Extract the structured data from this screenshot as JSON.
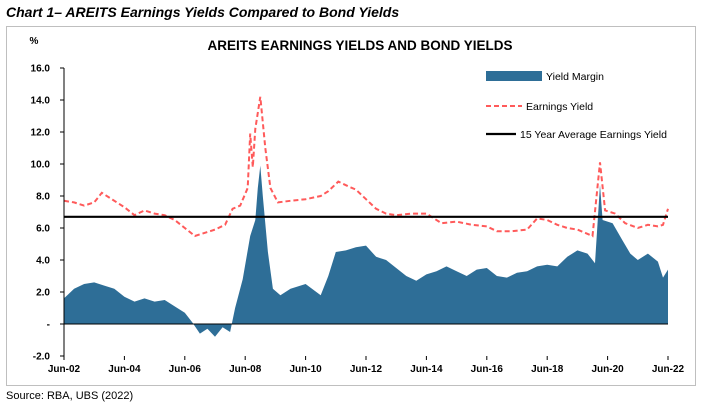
{
  "heading": "Chart 1– AREITS Earnings Yields Compared to Bond Yields",
  "source": "Source: RBA, UBS (2022)",
  "chart_data": {
    "type": "area",
    "title": "AREITS EARNINGS YIELDS AND BOND YIELDS",
    "unit_label": "%",
    "xlabel": "",
    "ylabel": "",
    "ylim": [
      -2.0,
      16.0
    ],
    "y_ticks": [
      "16.0",
      "14.0",
      "12.0",
      "10.0",
      "8.0",
      "6.0",
      "4.0",
      "2.0",
      "-",
      "-2.0"
    ],
    "x_ticks": [
      "Jun-02",
      "Jun-04",
      "Jun-06",
      "Jun-08",
      "Jun-10",
      "Jun-12",
      "Jun-14",
      "Jun-16",
      "Jun-18",
      "Jun-20",
      "Jun-22"
    ],
    "xlim": [
      "2002-06",
      "2022-06"
    ],
    "grid": false,
    "legend_position": "top-right",
    "series": [
      {
        "name": "Yield Margin",
        "style": "area",
        "color": "#2e6e97",
        "points": [
          [
            "2002-06",
            1.6
          ],
          [
            "2002-10",
            2.2
          ],
          [
            "2003-02",
            2.5
          ],
          [
            "2003-06",
            2.6
          ],
          [
            "2003-10",
            2.4
          ],
          [
            "2004-02",
            2.2
          ],
          [
            "2004-06",
            1.7
          ],
          [
            "2004-10",
            1.4
          ],
          [
            "2005-02",
            1.6
          ],
          [
            "2005-06",
            1.4
          ],
          [
            "2005-10",
            1.5
          ],
          [
            "2006-02",
            1.1
          ],
          [
            "2006-06",
            0.7
          ],
          [
            "2006-09",
            0.1
          ],
          [
            "2006-12",
            -0.6
          ],
          [
            "2007-03",
            -0.3
          ],
          [
            "2007-06",
            -0.8
          ],
          [
            "2007-09",
            -0.2
          ],
          [
            "2007-12",
            -0.5
          ],
          [
            "2008-02",
            1.0
          ],
          [
            "2008-05",
            2.8
          ],
          [
            "2008-08",
            5.5
          ],
          [
            "2008-10",
            6.5
          ],
          [
            "2008-11",
            8.5
          ],
          [
            "2008-12",
            9.9
          ],
          [
            "2009-01",
            8.0
          ],
          [
            "2009-03",
            4.5
          ],
          [
            "2009-05",
            2.2
          ],
          [
            "2009-08",
            1.8
          ],
          [
            "2009-12",
            2.2
          ],
          [
            "2010-06",
            2.5
          ],
          [
            "2010-12",
            1.8
          ],
          [
            "2011-03",
            3.0
          ],
          [
            "2011-06",
            4.5
          ],
          [
            "2011-10",
            4.6
          ],
          [
            "2012-02",
            4.8
          ],
          [
            "2012-06",
            4.9
          ],
          [
            "2012-10",
            4.2
          ],
          [
            "2013-02",
            4.0
          ],
          [
            "2013-06",
            3.5
          ],
          [
            "2013-10",
            3.0
          ],
          [
            "2014-02",
            2.7
          ],
          [
            "2014-06",
            3.1
          ],
          [
            "2014-10",
            3.3
          ],
          [
            "2015-02",
            3.6
          ],
          [
            "2015-06",
            3.3
          ],
          [
            "2015-10",
            3.0
          ],
          [
            "2016-02",
            3.4
          ],
          [
            "2016-06",
            3.5
          ],
          [
            "2016-10",
            3.0
          ],
          [
            "2017-02",
            2.9
          ],
          [
            "2017-06",
            3.2
          ],
          [
            "2017-10",
            3.3
          ],
          [
            "2018-02",
            3.6
          ],
          [
            "2018-06",
            3.7
          ],
          [
            "2018-10",
            3.6
          ],
          [
            "2019-02",
            4.2
          ],
          [
            "2019-06",
            4.6
          ],
          [
            "2019-10",
            4.4
          ],
          [
            "2020-01",
            3.8
          ],
          [
            "2020-03",
            8.7
          ],
          [
            "2020-04",
            6.5
          ],
          [
            "2020-08",
            6.3
          ],
          [
            "2020-12",
            5.2
          ],
          [
            "2021-03",
            4.4
          ],
          [
            "2021-06",
            4.0
          ],
          [
            "2021-10",
            4.4
          ],
          [
            "2022-02",
            3.9
          ],
          [
            "2022-04",
            2.9
          ],
          [
            "2022-06",
            3.4
          ]
        ]
      },
      {
        "name": "Earnings Yield",
        "style": "dashed",
        "color": "#ff5a5a",
        "points": [
          [
            "2002-06",
            7.7
          ],
          [
            "2002-10",
            7.6
          ],
          [
            "2003-02",
            7.4
          ],
          [
            "2003-06",
            7.6
          ],
          [
            "2003-09",
            8.2
          ],
          [
            "2004-01",
            7.8
          ],
          [
            "2004-06",
            7.3
          ],
          [
            "2004-10",
            6.8
          ],
          [
            "2005-02",
            7.1
          ],
          [
            "2005-06",
            6.9
          ],
          [
            "2005-10",
            6.8
          ],
          [
            "2006-02",
            6.5
          ],
          [
            "2006-06",
            6.0
          ],
          [
            "2006-10",
            5.5
          ],
          [
            "2007-02",
            5.7
          ],
          [
            "2007-06",
            5.9
          ],
          [
            "2007-10",
            6.2
          ],
          [
            "2008-01",
            7.2
          ],
          [
            "2008-04",
            7.4
          ],
          [
            "2008-07",
            8.5
          ],
          [
            "2008-08",
            11.9
          ],
          [
            "2008-09",
            9.8
          ],
          [
            "2008-10",
            12.2
          ],
          [
            "2008-12",
            14.2
          ],
          [
            "2009-02",
            11.0
          ],
          [
            "2009-04",
            8.5
          ],
          [
            "2009-07",
            7.6
          ],
          [
            "2009-12",
            7.7
          ],
          [
            "2010-06",
            7.8
          ],
          [
            "2010-12",
            8.0
          ],
          [
            "2011-03",
            8.3
          ],
          [
            "2011-07",
            8.9
          ],
          [
            "2011-11",
            8.6
          ],
          [
            "2012-02",
            8.4
          ],
          [
            "2012-06",
            7.8
          ],
          [
            "2012-10",
            7.2
          ],
          [
            "2013-02",
            6.9
          ],
          [
            "2013-06",
            6.8
          ],
          [
            "2013-12",
            6.9
          ],
          [
            "2014-06",
            6.9
          ],
          [
            "2014-12",
            6.3
          ],
          [
            "2015-06",
            6.4
          ],
          [
            "2015-12",
            6.2
          ],
          [
            "2016-06",
            6.1
          ],
          [
            "2016-10",
            5.8
          ],
          [
            "2017-04",
            5.8
          ],
          [
            "2017-10",
            5.9
          ],
          [
            "2018-02",
            6.6
          ],
          [
            "2018-06",
            6.5
          ],
          [
            "2018-10",
            6.2
          ],
          [
            "2019-02",
            6.0
          ],
          [
            "2019-06",
            5.9
          ],
          [
            "2019-12",
            5.5
          ],
          [
            "2020-03",
            10.1
          ],
          [
            "2020-05",
            7.1
          ],
          [
            "2020-09",
            6.9
          ],
          [
            "2021-01",
            6.3
          ],
          [
            "2021-06",
            6.0
          ],
          [
            "2021-10",
            6.2
          ],
          [
            "2022-02",
            6.1
          ],
          [
            "2022-04",
            6.2
          ],
          [
            "2022-06",
            7.2
          ]
        ]
      },
      {
        "name": "15 Year Average Earnings Yield",
        "style": "solid",
        "color": "#000000",
        "points": [
          [
            "2002-06",
            6.7
          ],
          [
            "2022-06",
            6.7
          ]
        ]
      }
    ]
  }
}
